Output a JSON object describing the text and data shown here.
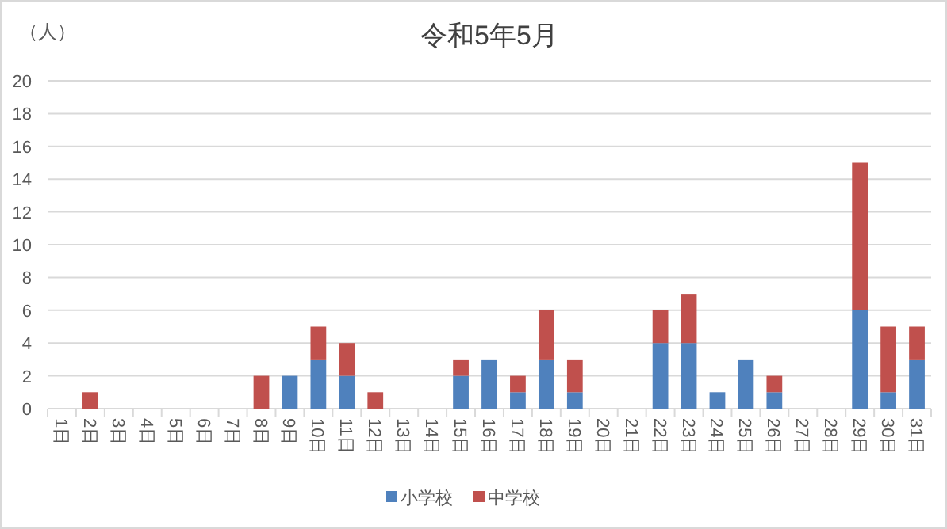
{
  "chart_data": {
    "type": "bar",
    "title": "令和5年5月",
    "ylabel": "（人）",
    "stacked": true,
    "categories": [
      "1日",
      "2日",
      "3日",
      "4日",
      "5日",
      "6日",
      "7日",
      "8日",
      "9日",
      "10日",
      "11日",
      "12日",
      "13日",
      "14日",
      "15日",
      "16日",
      "17日",
      "18日",
      "19日",
      "20日",
      "21日",
      "22日",
      "23日",
      "24日",
      "25日",
      "26日",
      "27日",
      "28日",
      "29日",
      "30日",
      "31日"
    ],
    "series": [
      {
        "name": "小学校",
        "color": "#4f81bd",
        "values": [
          0,
          0,
          0,
          0,
          0,
          0,
          0,
          0,
          2,
          3,
          2,
          0,
          0,
          0,
          2,
          3,
          1,
          3,
          1,
          0,
          0,
          4,
          4,
          1,
          3,
          1,
          0,
          0,
          6,
          1,
          3
        ]
      },
      {
        "name": "中学校",
        "color": "#c0504d",
        "values": [
          0,
          1,
          0,
          0,
          0,
          0,
          0,
          2,
          0,
          2,
          2,
          1,
          0,
          0,
          1,
          0,
          1,
          3,
          2,
          0,
          0,
          2,
          3,
          0,
          0,
          1,
          0,
          0,
          9,
          4,
          2
        ]
      }
    ],
    "ylim": [
      0,
      20
    ],
    "yticks": [
      0,
      2,
      4,
      6,
      8,
      10,
      12,
      14,
      16,
      18,
      20
    ],
    "grid": "y",
    "legend": "bottom"
  }
}
